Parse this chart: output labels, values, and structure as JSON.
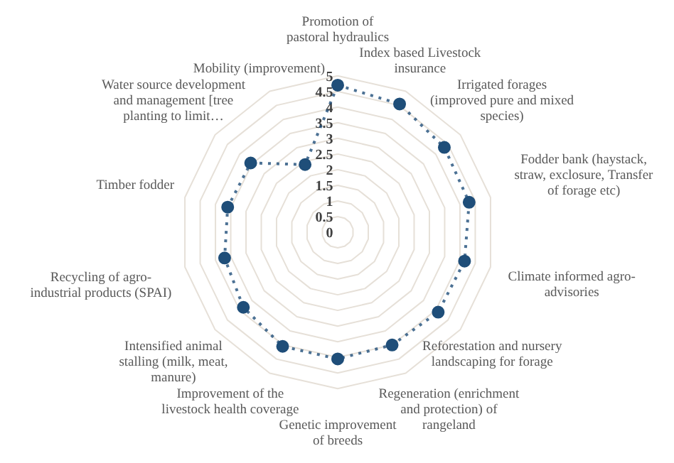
{
  "chart_data": {
    "type": "radar",
    "categories": [
      "Promotion of pastoral hydraulics",
      "Index based Livestock insurance",
      "Irrigated forages (improved pure and mixed species)",
      "Fodder bank (haystack, straw, exclosure, Transfer of forage etc)",
      "Climate informed agro-advisories",
      "Reforestation and nursery landscaping for forage",
      "Regeneration (enrichment and protection) of rangeland",
      "Genetic improvement of breeds",
      "Improvement of the livestock health coverage",
      "Intensified animal stalling (milk, meat, manure)",
      "Recycling of agro-industrial products (SPAI)",
      "Timber fodder",
      "Water source development and management [tree planting to limit…",
      "Mobility (improvement)"
    ],
    "series": [
      {
        "color": "#1f4e79",
        "values": [
          4.7,
          4.55,
          4.35,
          4.3,
          4.15,
          4.1,
          4.0,
          4.05,
          4.05,
          3.85,
          3.7,
          3.6,
          3.55,
          2.4
        ]
      }
    ],
    "ylim": [
      0,
      5
    ],
    "yticks": [
      0,
      0.5,
      1,
      1.5,
      2,
      2.5,
      3,
      3.5,
      4,
      4.5,
      5
    ],
    "grid": true,
    "marker": "circle",
    "line_style": "dotted"
  }
}
